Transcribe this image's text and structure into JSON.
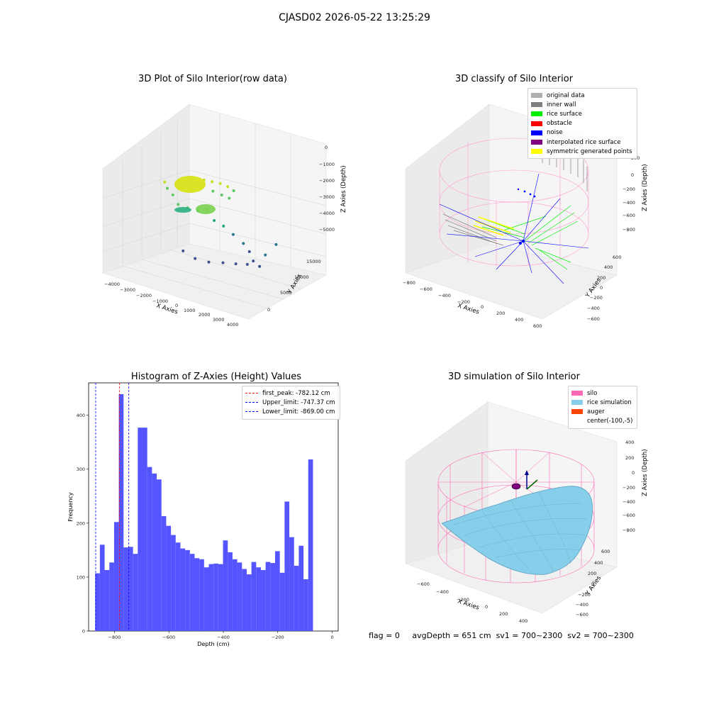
{
  "figure_title": "CJASD02 2026-05-22 13:25:29",
  "status": {
    "flag": "flag = 0",
    "avg_depth": "avgDepth = 651 cm",
    "sv1": "sv1 = 700~2300",
    "sv2": "sv2 = 700~2300"
  },
  "colors": {
    "hist_bar": "#4c4cff",
    "peak_line": "#ff0000",
    "limit_line": "#0000ff",
    "silo": "#ff69b4",
    "rice": "#87ceeb",
    "auger": "#ff4500",
    "rice_surface": "#00ee00",
    "noise": "#0000ff",
    "inner_wall": "#808080",
    "symmetric": "#ffff00",
    "interpolated": "#800080",
    "original": "#b0b0b0",
    "obstacle": "#ff0000"
  },
  "chart_data": [
    {
      "type": "scatter",
      "title": "3D Plot of Silo Interior(row data)",
      "xlabel": "X Axies",
      "ylabel": "Y Axies",
      "zlabel": "Z Axies (Depth)",
      "x_ticks": [
        "−4000",
        "−3000",
        "−2000",
        "−1000",
        "0",
        "1000",
        "2000",
        "3000",
        "4000"
      ],
      "y_ticks": [
        "0",
        "5000",
        "10000",
        "15000"
      ],
      "z_ticks": [
        "0",
        "−1000",
        "−2000",
        "−3000",
        "−4000",
        "−5000"
      ],
      "xlim": [
        -4000,
        4000
      ],
      "ylim": [
        -2000,
        17000
      ],
      "zlim": [
        -5600,
        0
      ],
      "points": [
        {
          "x": -2600,
          "y": 3800,
          "z": -2000
        },
        {
          "x": -2400,
          "y": 3600,
          "z": -2250
        },
        {
          "x": -2200,
          "y": 4200,
          "z": -2600
        },
        {
          "x": -1800,
          "y": 3800,
          "z": -2950
        },
        {
          "x": -1300,
          "y": 4100,
          "z": -3050
        },
        {
          "x": -700,
          "y": 4200,
          "z": -3100
        },
        {
          "x": -200,
          "y": 4400,
          "z": -2950
        },
        {
          "x": 300,
          "y": 4000,
          "z": -3350
        },
        {
          "x": 600,
          "y": 5200,
          "z": -3700
        },
        {
          "x": 900,
          "y": 6500,
          "z": -4200
        },
        {
          "x": 1400,
          "y": 7000,
          "z": -4600
        },
        {
          "x": 1800,
          "y": 6800,
          "z": -4900
        },
        {
          "x": 2200,
          "y": 6000,
          "z": -5200
        },
        {
          "x": 2700,
          "y": 5400,
          "z": -5300
        },
        {
          "x": 3000,
          "y": 5600,
          "z": -4700
        },
        {
          "x": 3300,
          "y": 7200,
          "z": -4300
        },
        {
          "x": -1800,
          "y": 5200,
          "z": -5400
        },
        {
          "x": -900,
          "y": 4300,
          "z": -5500
        },
        {
          "x": 0,
          "y": 3900,
          "z": -5450
        },
        {
          "x": 800,
          "y": 4100,
          "z": -5350
        },
        {
          "x": 1500,
          "y": 4400,
          "z": -5300
        },
        {
          "x": 2100,
          "y": 4800,
          "z": -5250
        },
        {
          "x": -900,
          "y": 6800,
          "z": -1900
        },
        {
          "x": -500,
          "y": 7200,
          "z": -1950
        },
        {
          "x": -100,
          "y": 7600,
          "z": -2000
        },
        {
          "x": 300,
          "y": 7800,
          "z": -2100
        },
        {
          "x": 700,
          "y": 7600,
          "z": -2200
        },
        {
          "x": -300,
          "y": 6500,
          "z": -2300
        },
        {
          "x": 200,
          "y": 6600,
          "z": -2400
        },
        {
          "x": 600,
          "y": 6800,
          "z": -2500
        }
      ]
    },
    {
      "type": "scatter",
      "title": "3D classify of Silo Interior",
      "xlabel": "X Axies",
      "ylabel": "Y Axies",
      "zlabel": "Z Axies (Depth)",
      "x_ticks": [
        "−800",
        "−600",
        "−400",
        "−200",
        "0",
        "200",
        "400",
        "600"
      ],
      "y_ticks": [
        "−600",
        "−400",
        "−200",
        "0",
        "200",
        "400",
        "600"
      ],
      "z_ticks": [
        "200",
        "0",
        "−200",
        "−400",
        "−600",
        "−800"
      ],
      "series": [
        {
          "name": "original data",
          "color": "#b0b0b0"
        },
        {
          "name": "inner wall",
          "color": "#808080"
        },
        {
          "name": "rice surface",
          "color": "#00ee00"
        },
        {
          "name": "obstacle",
          "color": "#ff0000"
        },
        {
          "name": "noise",
          "color": "#0000ff"
        },
        {
          "name": "interpolated rice surface",
          "color": "#800080"
        },
        {
          "name": "symmetric generated points",
          "color": "#ffff00"
        }
      ]
    },
    {
      "type": "bar",
      "title": "Histogram of Z-Axies (Height) Values",
      "xlabel": "Depth (cm)",
      "ylabel": "Frequency",
      "xlim": [
        -895,
        22
      ],
      "ylim": [
        0,
        460
      ],
      "x_ticks": [
        {
          "v": -800,
          "label": "−800"
        },
        {
          "v": -600,
          "label": "−600"
        },
        {
          "v": -400,
          "label": "−400"
        },
        {
          "v": -200,
          "label": "−200"
        },
        {
          "v": 0,
          "label": "0"
        }
      ],
      "y_ticks": [
        0,
        100,
        200,
        300,
        400
      ],
      "bin_start": -871,
      "bin_width": 17.4,
      "values": [
        107,
        160,
        113,
        127,
        202,
        439,
        155,
        156,
        143,
        377,
        377,
        304,
        292,
        281,
        213,
        195,
        178,
        164,
        153,
        150,
        143,
        135,
        133,
        118,
        124,
        125,
        124,
        168,
        146,
        133,
        127,
        115,
        105,
        128,
        118,
        113,
        128,
        126,
        148,
        108,
        240,
        174,
        121,
        158,
        96,
        318
      ],
      "vlines": [
        {
          "label": "first_peak: -782.12 cm",
          "value": -782.12,
          "kind": "peak"
        },
        {
          "label": "Upper_limit: -747.37 cm",
          "value": -747.37,
          "kind": "limit"
        },
        {
          "label": "Lower_limit: -869.00 cm",
          "value": -869.0,
          "kind": "limit"
        }
      ]
    },
    {
      "type": "area",
      "title": "3D simulation of Silo Interior",
      "xlabel": "X Axies",
      "ylabel": "Y Axies",
      "zlabel": "Z Axies (Depth)",
      "x_ticks": [
        "−600",
        "−400",
        "−200",
        "0",
        "200",
        "400"
      ],
      "y_ticks": [
        "−600",
        "−400",
        "−200",
        "0",
        "200",
        "400",
        "600"
      ],
      "z_ticks": [
        "400",
        "200",
        "0",
        "−200",
        "−400",
        "−600",
        "−800"
      ],
      "series": [
        {
          "name": "silo",
          "color": "#ff69b4"
        },
        {
          "name": "rice simulation",
          "color": "#87ceeb"
        },
        {
          "name": "auger",
          "color": "#ff4500"
        },
        {
          "name": "center(-100,-5)",
          "color": ""
        }
      ]
    }
  ]
}
